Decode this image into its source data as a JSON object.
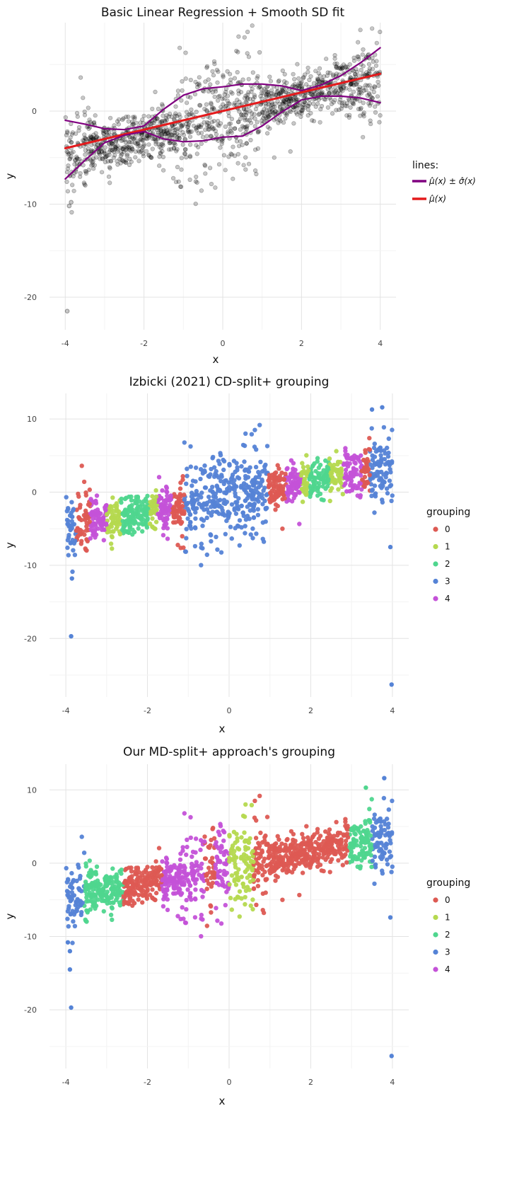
{
  "chart_data": [
    {
      "type": "scatter",
      "title": "Basic Linear Regression + Smooth SD fit",
      "xlabel": "x",
      "ylabel": "y",
      "xlim": [
        -4.4,
        4.4
      ],
      "ylim": [
        -23.5,
        9.5
      ],
      "x_ticks": [
        -4,
        -2,
        0,
        2,
        4
      ],
      "x_tick_labels": [
        "-4",
        "-2",
        "0",
        "2",
        "4"
      ],
      "y_ticks": [
        0,
        -10,
        -20
      ],
      "y_tick_labels": [
        "0",
        "-10",
        "-20"
      ],
      "grid": true,
      "point_color": "#000000",
      "point_opacity": 0.22,
      "points_description": "about 1400 points, x in [-4, 4], y roughly -1 + x with sd increasing away from center; outliers near (-3.95, -21.5), (-3.9, -10)",
      "legend": {
        "title": "lines:",
        "placement": "right",
        "entries": [
          {
            "label": "μ̂(x) ± σ̂(x)",
            "color": "#800080"
          },
          {
            "label": "μ̂(x)",
            "color": "#e41a1c"
          }
        ]
      },
      "lines": [
        {
          "name": "mean",
          "color": "#e41a1c",
          "x": [
            -4,
            4
          ],
          "y": [
            -4.0,
            4.0
          ]
        },
        {
          "name": "upper",
          "color": "#800080",
          "x": [
            -4,
            -3.5,
            -3,
            -2.5,
            -2,
            -1.5,
            -1,
            -0.5,
            0,
            0.5,
            1,
            1.5,
            2,
            2.5,
            3,
            3.5,
            4
          ],
          "y": [
            -1.0,
            -1.4,
            -1.9,
            -2.0,
            -1.6,
            0.2,
            1.7,
            2.4,
            2.6,
            2.9,
            2.9,
            2.7,
            2.2,
            2.8,
            3.8,
            5.2,
            6.8
          ]
        },
        {
          "name": "lower",
          "color": "#800080",
          "x": [
            -4,
            -3.5,
            -3,
            -2.5,
            -2,
            -1.5,
            -1,
            -0.5,
            0,
            0.5,
            1,
            1.5,
            2,
            2.5,
            3,
            3.5,
            4
          ],
          "y": [
            -7.3,
            -5.3,
            -3.4,
            -2.6,
            -2.2,
            -3.0,
            -3.3,
            -3.2,
            -2.8,
            -2.7,
            -1.6,
            -0.1,
            1.2,
            1.6,
            1.6,
            1.4,
            0.9
          ]
        }
      ]
    },
    {
      "type": "scatter",
      "title": "Izbicki (2021) CD-split+ grouping",
      "xlabel": "x",
      "ylabel": "y",
      "xlim": [
        -4.4,
        4.4
      ],
      "ylim": [
        -28.0,
        13.5
      ],
      "x_ticks": [
        -4,
        -2,
        0,
        2,
        4
      ],
      "x_tick_labels": [
        "-4",
        "-2",
        "0",
        "2",
        "4"
      ],
      "y_ticks": [
        10,
        0,
        -10,
        -20
      ],
      "y_tick_labels": [
        "10",
        "0",
        "-10",
        "-20"
      ],
      "grid": true,
      "legend": {
        "title": "grouping",
        "placement": "right",
        "entries": [
          {
            "label": "0",
            "color": "#dd5a53"
          },
          {
            "label": "1",
            "color": "#b5d94f"
          },
          {
            "label": "2",
            "color": "#4fd68e"
          },
          {
            "label": "3",
            "color": "#5583d6"
          },
          {
            "label": "4",
            "color": "#c452d8"
          }
        ]
      },
      "group_bands": [
        {
          "x_range": [
            -4.0,
            -3.75
          ],
          "group": "3"
        },
        {
          "x_range": [
            -3.75,
            -3.4
          ],
          "group": "0"
        },
        {
          "x_range": [
            -3.4,
            -3.0
          ],
          "group": "4"
        },
        {
          "x_range": [
            -3.0,
            -2.65
          ],
          "group": "1"
        },
        {
          "x_range": [
            -2.65,
            -1.95
          ],
          "group": "2"
        },
        {
          "x_range": [
            -1.95,
            -1.75
          ],
          "group": "1"
        },
        {
          "x_range": [
            -1.75,
            -1.4
          ],
          "group": "4"
        },
        {
          "x_range": [
            -1.4,
            -1.1
          ],
          "group": "0"
        },
        {
          "x_range": [
            -1.1,
            0.95
          ],
          "group": "3"
        },
        {
          "x_range": [
            0.95,
            1.4
          ],
          "group": "0"
        },
        {
          "x_range": [
            1.4,
            1.75
          ],
          "group": "4"
        },
        {
          "x_range": [
            1.75,
            1.95
          ],
          "group": "1"
        },
        {
          "x_range": [
            1.95,
            2.45
          ],
          "group": "2"
        },
        {
          "x_range": [
            2.45,
            2.8
          ],
          "group": "1"
        },
        {
          "x_range": [
            2.8,
            3.25
          ],
          "group": "4"
        },
        {
          "x_range": [
            3.25,
            3.45
          ],
          "group": "0"
        },
        {
          "x_range": [
            3.45,
            4.0
          ],
          "group": "3"
        }
      ],
      "outliers": [
        {
          "x": -3.87,
          "y": -19.7,
          "group": "3"
        },
        {
          "x": 3.98,
          "y": -26.3,
          "group": "3"
        },
        {
          "x": -3.85,
          "y": -11.8,
          "group": "3"
        },
        {
          "x": 3.95,
          "y": -7.5,
          "group": "3"
        },
        {
          "x": 3.5,
          "y": 11.3,
          "group": "3"
        },
        {
          "x": 3.75,
          "y": 11.6,
          "group": "3"
        }
      ]
    },
    {
      "type": "scatter",
      "title": "Our MD-split+ approach's grouping",
      "xlabel": "x",
      "ylabel": "y",
      "xlim": [
        -4.4,
        4.4
      ],
      "ylim": [
        -28.0,
        13.5
      ],
      "x_ticks": [
        -4,
        -2,
        0,
        2,
        4
      ],
      "x_tick_labels": [
        "-4",
        "-2",
        "0",
        "2",
        "4"
      ],
      "y_ticks": [
        10,
        0,
        -10,
        -20
      ],
      "y_tick_labels": [
        "10",
        "0",
        "-10",
        "-20"
      ],
      "grid": true,
      "legend": {
        "title": "grouping",
        "placement": "right",
        "entries": [
          {
            "label": "0",
            "color": "#dd5a53"
          },
          {
            "label": "1",
            "color": "#b5d94f"
          },
          {
            "label": "2",
            "color": "#4fd68e"
          },
          {
            "label": "3",
            "color": "#5583d6"
          },
          {
            "label": "4",
            "color": "#c452d8"
          }
        ]
      },
      "group_bands": [
        {
          "x_range": [
            -4.0,
            -3.55
          ],
          "group": "3"
        },
        {
          "x_range": [
            -3.55,
            -2.6
          ],
          "group": "2"
        },
        {
          "x_range": [
            -2.6,
            -1.65
          ],
          "group": "0"
        },
        {
          "x_range": [
            -1.65,
            -0.6
          ],
          "group": "4"
        },
        {
          "x_range": [
            -0.6,
            -0.35
          ],
          "group": "0"
        },
        {
          "x_range": [
            -0.35,
            0.0
          ],
          "group": "4"
        },
        {
          "x_range": [
            0.0,
            0.6
          ],
          "group": "1"
        },
        {
          "x_range": [
            0.6,
            2.95
          ],
          "group": "0"
        },
        {
          "x_range": [
            2.95,
            3.5
          ],
          "group": "2"
        },
        {
          "x_range": [
            3.5,
            4.0
          ],
          "group": "3"
        }
      ],
      "outliers": [
        {
          "x": -3.87,
          "y": -19.7,
          "group": "3"
        },
        {
          "x": 3.98,
          "y": -26.3,
          "group": "3"
        },
        {
          "x": -3.9,
          "y": -14.5,
          "group": "3"
        },
        {
          "x": -3.9,
          "y": -12.0,
          "group": "3"
        },
        {
          "x": -3.95,
          "y": -10.8,
          "group": "3"
        },
        {
          "x": 3.8,
          "y": 11.6,
          "group": "3"
        },
        {
          "x": 3.35,
          "y": 10.3,
          "group": "2"
        },
        {
          "x": 3.95,
          "y": -7.4,
          "group": "3"
        }
      ]
    }
  ]
}
